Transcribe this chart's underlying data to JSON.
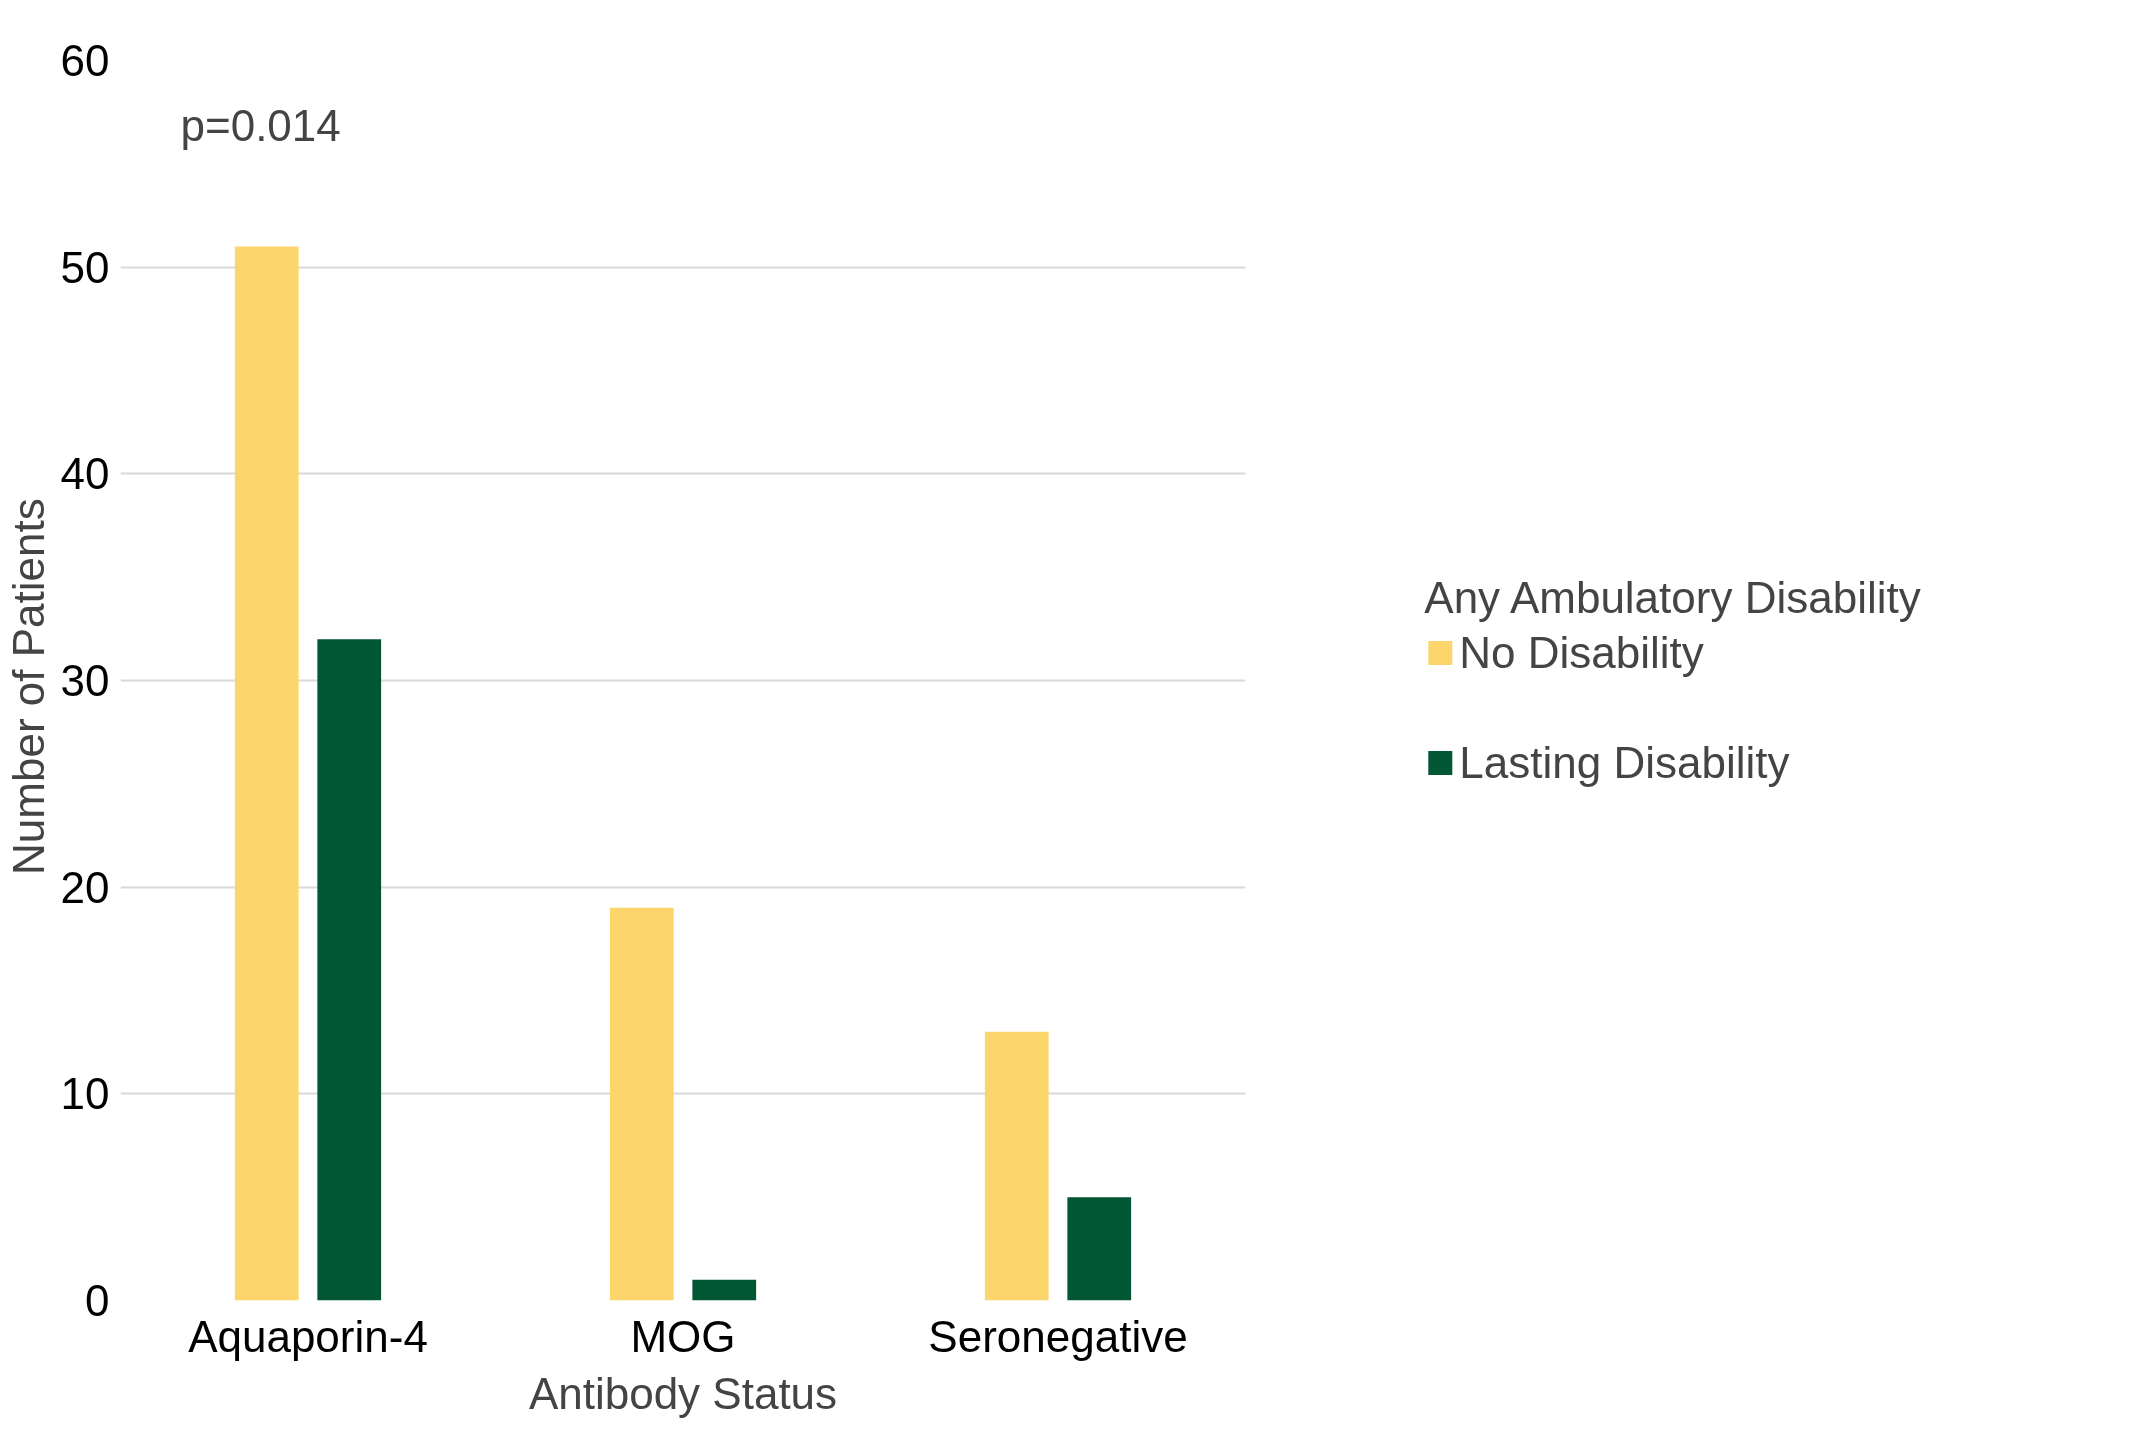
{
  "chart_data": {
    "type": "bar",
    "xlabel": "Antibody Status",
    "ylabel": "Number  of Patients",
    "legend_title": "Any Ambulatory Disability",
    "categories": [
      "Aquaporin-4",
      "MOG",
      "Seronegative"
    ],
    "series": [
      {
        "name": "No Disability",
        "color": "#fdd56d",
        "values": [
          51,
          19,
          13
        ]
      },
      {
        "name": "Lasting Disability",
        "color": "#015634",
        "values": [
          32,
          1,
          5
        ]
      }
    ],
    "ylim": [
      0,
      60
    ],
    "yticks": [
      0,
      10,
      20,
      30,
      40,
      50,
      60
    ],
    "grid": "y",
    "legend": "right",
    "annotations": [
      "p=0.014"
    ]
  }
}
